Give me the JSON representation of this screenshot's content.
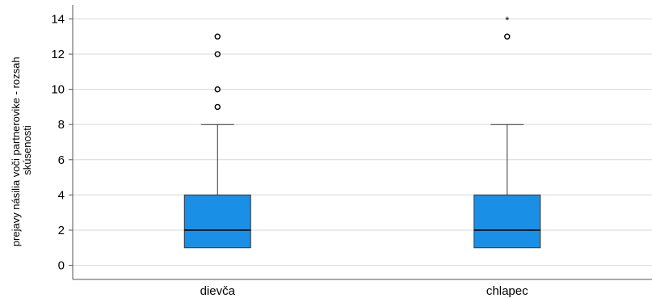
{
  "chart_data": {
    "type": "boxplot",
    "ylabel_lines": [
      "prejavy násilia voči partnerovike - rozsah",
      "skúsenosti"
    ],
    "ylim": [
      -0.8,
      14.8
    ],
    "yticks": [
      0,
      2,
      4,
      6,
      8,
      10,
      12,
      14
    ],
    "grid": true,
    "categories": [
      "dievča",
      "chlapec"
    ],
    "boxes": [
      {
        "category": "dievča",
        "whisker_low": 1,
        "q1": 1,
        "median": 2,
        "q3": 4,
        "whisker_high": 8,
        "outliers": [
          9,
          10,
          12,
          13
        ],
        "extremes": []
      },
      {
        "category": "chlapec",
        "whisker_low": 1,
        "q1": 1,
        "median": 2,
        "q3": 4,
        "whisker_high": 8,
        "outliers": [
          13
        ],
        "extremes": [
          14
        ]
      }
    ],
    "box_color": "#1a8fe6"
  }
}
